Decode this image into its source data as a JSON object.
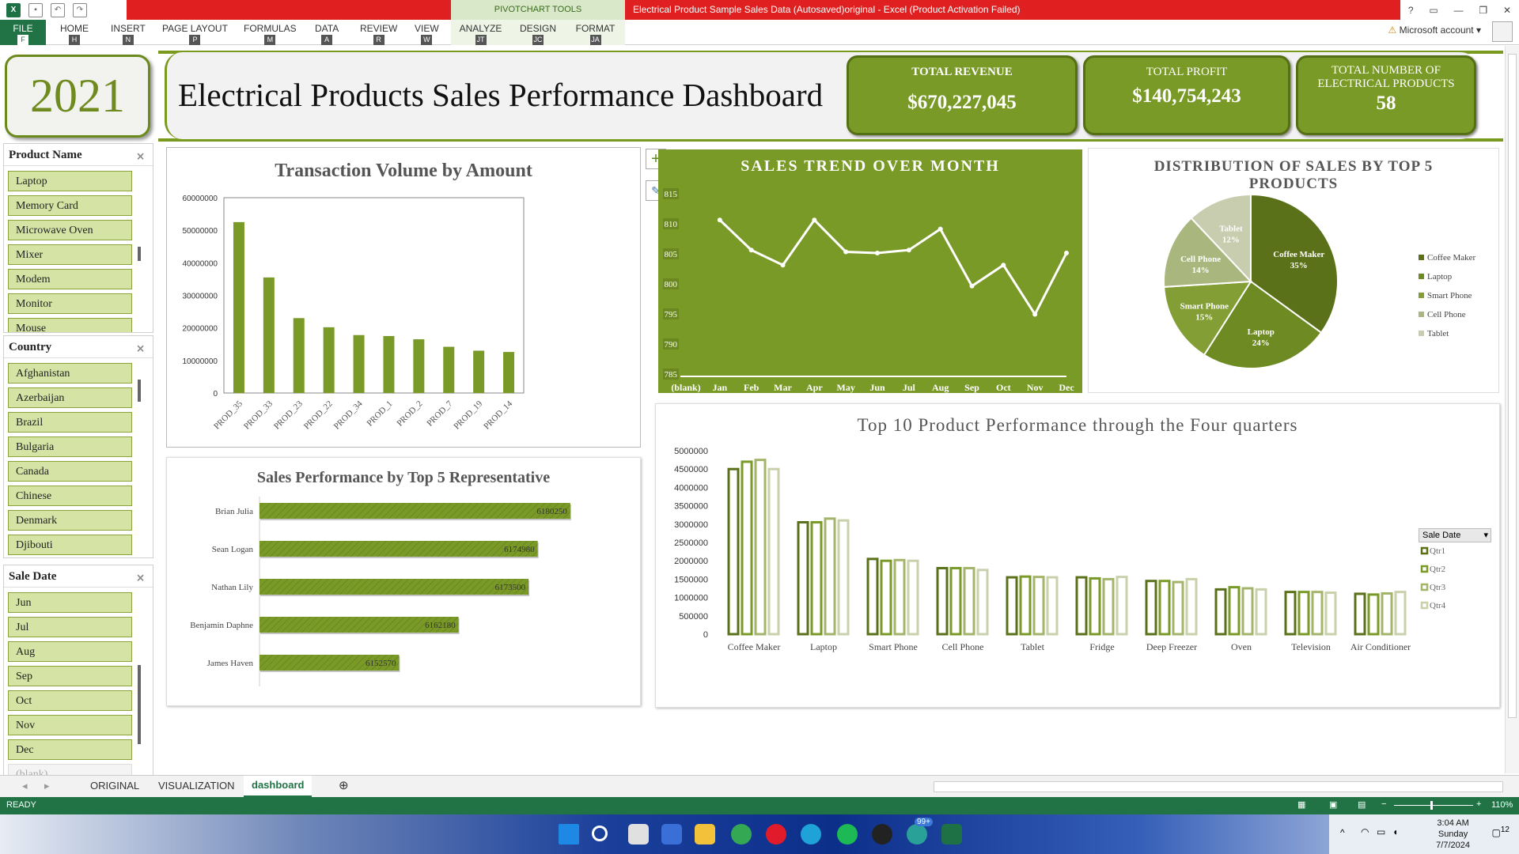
{
  "app": {
    "window_title": "Electrical Product Sample Sales Data (Autosaved)original - Excel (Product Activation Failed)",
    "context_tab_group": "PIVOTCHART TOOLS",
    "account": "Microsoft account",
    "help": "?"
  },
  "ribbon": {
    "tabs": [
      {
        "label": "FILE",
        "key": "F"
      },
      {
        "label": "HOME",
        "key": "H"
      },
      {
        "label": "INSERT",
        "key": "N"
      },
      {
        "label": "PAGE LAYOUT",
        "key": "P"
      },
      {
        "label": "FORMULAS",
        "key": "M"
      },
      {
        "label": "DATA",
        "key": "A"
      },
      {
        "label": "REVIEW",
        "key": "R"
      },
      {
        "label": "VIEW",
        "key": "W"
      },
      {
        "label": "ANALYZE",
        "key": "JT"
      },
      {
        "label": "DESIGN",
        "key": "JC"
      },
      {
        "label": "FORMAT",
        "key": "JA"
      }
    ]
  },
  "dashboard": {
    "year": "2021",
    "title": "Electrical Products Sales Performance Dashboard",
    "kpis": {
      "revenue": {
        "label": "TOTAL REVENUE",
        "value": "$670,227,045"
      },
      "profit": {
        "label": "TOTAL PROFIT",
        "value": "$140,754,243"
      },
      "products": {
        "label": "TOTAL NUMBER OF ELECTRICAL PRODUCTS",
        "value": "58"
      }
    }
  },
  "slicers": {
    "product": {
      "title": "Product Name",
      "items": [
        "Laptop",
        "Memory Card",
        "Microwave Oven",
        "Mixer",
        "Modem",
        "Monitor",
        "Mouse"
      ]
    },
    "country": {
      "title": "Country",
      "items": [
        "Afghanistan",
        "Azerbaijan",
        "Brazil",
        "Bulgaria",
        "Canada",
        "Chinese",
        "Denmark",
        "Djibouti"
      ]
    },
    "sale_date": {
      "title": "Sale Date",
      "items": [
        "Jun",
        "Jul",
        "Aug",
        "Sep",
        "Oct",
        "Nov",
        "Dec",
        "(blank)"
      ]
    }
  },
  "chart_data": [
    {
      "id": "transaction",
      "type": "bar",
      "title": "Transaction Volume by Amount",
      "categories": [
        "PROD_35",
        "PROD_33",
        "PROD_23",
        "PROD_22",
        "PROD_34",
        "PROD_1",
        "PROD_2",
        "PROD_7",
        "PROD_19",
        "PROD_14"
      ],
      "values": [
        52500000,
        35500000,
        23000000,
        20200000,
        17800000,
        17500000,
        16500000,
        14200000,
        13000000,
        12600000
      ],
      "ylim": [
        0,
        60000000
      ],
      "yticks": [
        "60000000",
        "50000000",
        "40000000",
        "30000000",
        "20000000",
        "10000000",
        "0"
      ],
      "color": "#7a9a27"
    },
    {
      "id": "trend",
      "type": "line",
      "title": "SALES TREND OVER MONTH",
      "categories": [
        "(blank)",
        "Jan",
        "Feb",
        "Mar",
        "Apr",
        "May",
        "Jun",
        "Jul",
        "Aug",
        "Sep",
        "Oct",
        "Nov",
        "Dec"
      ],
      "values": [
        null,
        810.5,
        805.5,
        803,
        810.5,
        805.2,
        805,
        805.5,
        809,
        799.5,
        803,
        794.8,
        805
      ],
      "ylim": [
        785,
        815
      ],
      "yticks": [
        "815",
        "810",
        "805",
        "800",
        "795",
        "790",
        "785"
      ],
      "bg": "#7a9a27",
      "line": "#ffffff"
    },
    {
      "id": "pie",
      "type": "pie",
      "title": "DISTRIBUTION OF SALES BY TOP  5 PRODUCTS",
      "slices": [
        {
          "name": "Coffee Maker",
          "pct": 35,
          "label": "35%",
          "color": "#5b7119"
        },
        {
          "name": "Laptop",
          "pct": 24,
          "label": "24%",
          "color": "#6e8a22"
        },
        {
          "name": "Smart Phone",
          "pct": 15,
          "label": "15%",
          "color": "#839e35"
        },
        {
          "name": "Cell Phone",
          "pct": 14,
          "label": "14%",
          "color": "#a9b77e"
        },
        {
          "name": "Tablet",
          "pct": 12,
          "label": "12%",
          "color": "#c7cdae"
        }
      ],
      "legend": "right"
    },
    {
      "id": "reps",
      "type": "bar",
      "title": "Sales Performance by Top 5 Representative",
      "categories": [
        "Brian Julia",
        "Sean Logan",
        "Nathan Lily",
        "Benjamin Daphne",
        "James Haven"
      ],
      "values": [
        6180250,
        6174980,
        6173500,
        6162180,
        6152570
      ],
      "labels": [
        "6180250",
        "6174980",
        "6173500",
        "6162180",
        "6152570"
      ],
      "color": "#7a9a27"
    },
    {
      "id": "quarters",
      "type": "bar",
      "title": "Top 10 Product Performance through the Four quarters",
      "categories": [
        "Coffee Maker",
        "Laptop",
        "Smart Phone",
        "Cell Phone",
        "Tablet",
        "Fridge",
        "Deep Freezer",
        "Oven",
        "Television",
        "Air Conditioner"
      ],
      "ylim": [
        0,
        5000000
      ],
      "yticks": [
        "5000000",
        "4500000",
        "4000000",
        "3500000",
        "3000000",
        "2500000",
        "2000000",
        "1500000",
        "1000000",
        "500000",
        "0"
      ],
      "legend_title": "Sale Date",
      "series": [
        {
          "name": "Qtr1",
          "color": "#5b7119",
          "values": [
            4500000,
            3050000,
            2050000,
            1800000,
            1550000,
            1550000,
            1450000,
            1220000,
            1150000,
            1100000
          ]
        },
        {
          "name": "Qtr2",
          "color": "#7a9a27",
          "values": [
            4700000,
            3050000,
            2000000,
            1800000,
            1570000,
            1520000,
            1450000,
            1280000,
            1150000,
            1080000
          ]
        },
        {
          "name": "Qtr3",
          "color": "#a3b56a",
          "values": [
            4750000,
            3150000,
            2020000,
            1800000,
            1560000,
            1500000,
            1420000,
            1250000,
            1150000,
            1110000
          ]
        },
        {
          "name": "Qtr4",
          "color": "#c9d0ac",
          "values": [
            4500000,
            3100000,
            2000000,
            1750000,
            1550000,
            1560000,
            1500000,
            1220000,
            1130000,
            1150000
          ]
        }
      ]
    }
  ],
  "sheet_tabs": [
    "ORIGINAL",
    "VISUALIZATION",
    "dashboard"
  ],
  "status": {
    "mode": "READY",
    "zoom": "110%"
  },
  "taskbar": {
    "time": "3:04 AM",
    "day": "Sunday",
    "date": "7/7/2024",
    "badge": "99+",
    "notif": "12"
  }
}
